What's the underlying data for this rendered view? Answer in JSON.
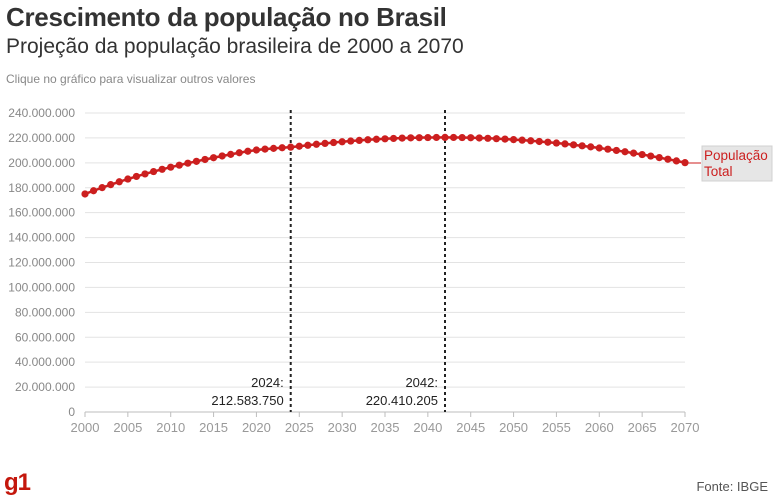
{
  "header": {
    "title": "Crescimento da população no Brasil",
    "subtitle": "Projeção da população brasileira de 2000 a 2070",
    "hint": "Clique no gráfico para visualizar outros valores"
  },
  "footer": {
    "logo": "g1",
    "source": "Fonte: IBGE"
  },
  "colors": {
    "series": "#cc1f1f",
    "grid": "#e3e3e3",
    "label_bg": "#e6e6e6"
  },
  "chart_data": {
    "type": "line",
    "xlim": [
      2000,
      2070
    ],
    "ylim": [
      0,
      240000000
    ],
    "x_ticks": [
      "2000",
      "2005",
      "2010",
      "2015",
      "2020",
      "2025",
      "2030",
      "2035",
      "2040",
      "2045",
      "2050",
      "2055",
      "2060",
      "2065",
      "2070"
    ],
    "y_ticks": [
      "0",
      "20.000.000",
      "40.000.000",
      "60.000.000",
      "80.000.000",
      "100.000.000",
      "120.000.000",
      "140.000.000",
      "160.000.000",
      "180.000.000",
      "200.000.000",
      "220.000.000",
      "240.000.000"
    ],
    "grid": true,
    "series": [
      {
        "name": "População Total",
        "label_line1": "População",
        "label_line2": "Total",
        "x": [
          2000,
          2001,
          2002,
          2003,
          2004,
          2005,
          2006,
          2007,
          2008,
          2009,
          2010,
          2011,
          2012,
          2013,
          2014,
          2015,
          2016,
          2017,
          2018,
          2019,
          2020,
          2021,
          2022,
          2023,
          2024,
          2025,
          2026,
          2027,
          2028,
          2029,
          2030,
          2031,
          2032,
          2033,
          2034,
          2035,
          2036,
          2037,
          2038,
          2039,
          2040,
          2041,
          2042,
          2043,
          2044,
          2045,
          2046,
          2047,
          2048,
          2049,
          2050,
          2051,
          2052,
          2053,
          2054,
          2055,
          2056,
          2057,
          2058,
          2059,
          2060,
          2061,
          2062,
          2063,
          2064,
          2065,
          2066,
          2067,
          2068,
          2069,
          2070
        ],
        "values": [
          175000000,
          177600000,
          180100000,
          182500000,
          184800000,
          187000000,
          189100000,
          191100000,
          193000000,
          194800000,
          196500000,
          198100000,
          199700000,
          201200000,
          202700000,
          204100000,
          205500000,
          206800000,
          208100000,
          209300000,
          210300000,
          211000000,
          211600000,
          212100000,
          212583750,
          213300000,
          214100000,
          214900000,
          215600000,
          216300000,
          216900000,
          217500000,
          218000000,
          218500000,
          218900000,
          219300000,
          219600000,
          219850000,
          220050000,
          220200000,
          220300000,
          220370000,
          220410205,
          220380000,
          220300000,
          220150000,
          219950000,
          219700000,
          219400000,
          219050000,
          218650000,
          218200000,
          217700000,
          217150000,
          216550000,
          215900000,
          215200000,
          214450000,
          213650000,
          212800000,
          211900000,
          210950000,
          209950000,
          208900000,
          207800000,
          206650000,
          205450000,
          204200000,
          202900000,
          201550000,
          200150000
        ]
      }
    ],
    "annotations": [
      {
        "year": "2024:",
        "value": "212.583.750",
        "x": 2024
      },
      {
        "year": "2042:",
        "value": "220.410.205",
        "x": 2042
      }
    ]
  }
}
